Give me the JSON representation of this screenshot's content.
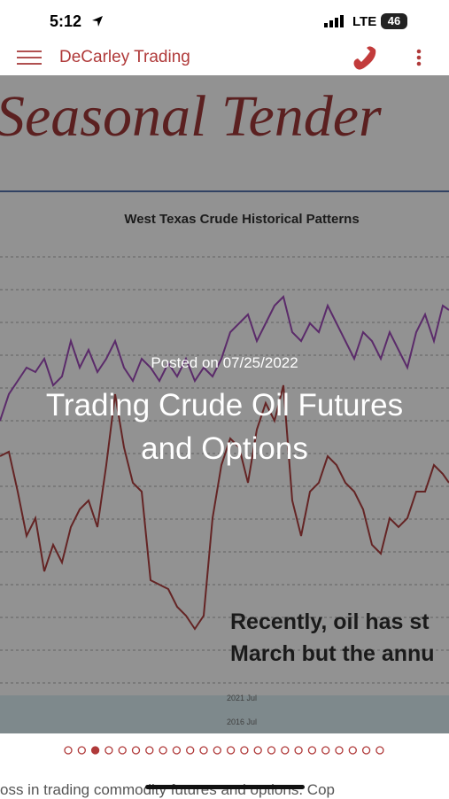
{
  "status_bar": {
    "time": "5:12",
    "network": "LTE",
    "battery": "46"
  },
  "app_bar": {
    "title": "DeCarley Trading"
  },
  "hero": {
    "image_heading": "Seasonal Tender",
    "chart_title": "West Texas Crude Historical Patterns",
    "image_text": [
      "Recently, oil has st",
      "March but the annu"
    ],
    "axis_labels": [
      "2021 Jul",
      "2016 Jul"
    ],
    "posted": "Posted on 07/25/2022",
    "title": "Trading Crude Oil Futures and Options"
  },
  "body": {
    "text": "oss in trading commodity futures and options. Cop"
  }
}
